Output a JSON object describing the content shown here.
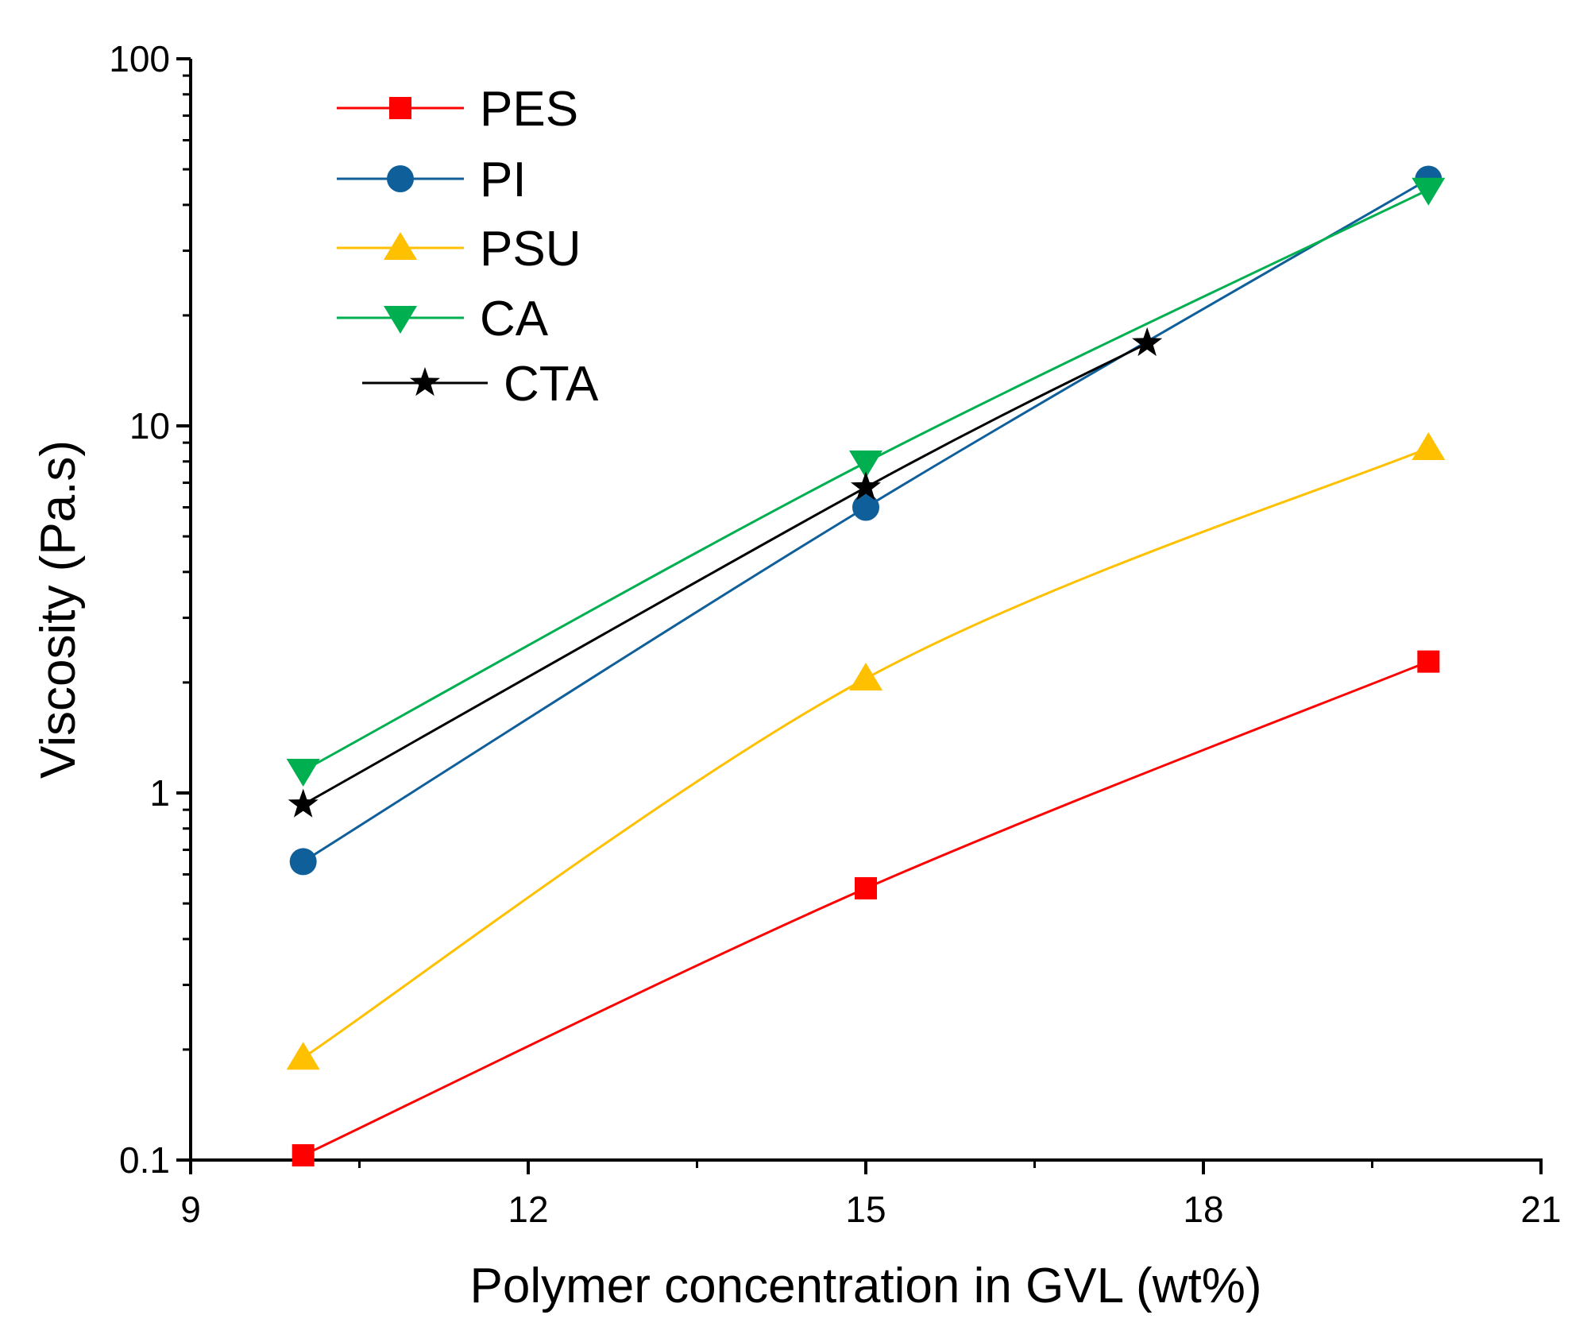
{
  "chart_data": {
    "type": "line",
    "title": "",
    "xlabel": "Polymer concentration in GVL (wt%)",
    "ylabel": "Viscosity (Pa.s)",
    "xlim": [
      9,
      21
    ],
    "ylim": [
      0.1,
      100
    ],
    "yscale": "log",
    "x_ticks": [
      9,
      12,
      15,
      18,
      21
    ],
    "x_tick_labels": [
      "9",
      "12",
      "15",
      "18",
      "21"
    ],
    "y_ticks": [
      0.1,
      1,
      10,
      100
    ],
    "y_tick_labels": [
      "0.1",
      "1",
      "10",
      "100"
    ],
    "grid": false,
    "legend_position": "top-left",
    "series": [
      {
        "name": "PES",
        "color": "#ff0000",
        "marker": "square",
        "x": [
          10,
          15,
          20
        ],
        "values": [
          0.103,
          0.55,
          2.28
        ]
      },
      {
        "name": "PI",
        "color": "#0f5f9a",
        "marker": "circle",
        "x": [
          10,
          15,
          20
        ],
        "values": [
          0.65,
          6.0,
          47
        ]
      },
      {
        "name": "PSU",
        "color": "#ffc000",
        "marker": "triangle-up",
        "x": [
          10,
          15,
          20
        ],
        "values": [
          0.19,
          2.05,
          8.7
        ]
      },
      {
        "name": "CA",
        "color": "#00b050",
        "marker": "triangle-down",
        "x": [
          10,
          15,
          20
        ],
        "values": [
          1.15,
          7.95,
          44
        ]
      },
      {
        "name": "CTA",
        "color": "#000000",
        "marker": "star",
        "x": [
          10,
          15,
          17.5
        ],
        "values": [
          0.93,
          6.8,
          16.8
        ]
      }
    ]
  }
}
